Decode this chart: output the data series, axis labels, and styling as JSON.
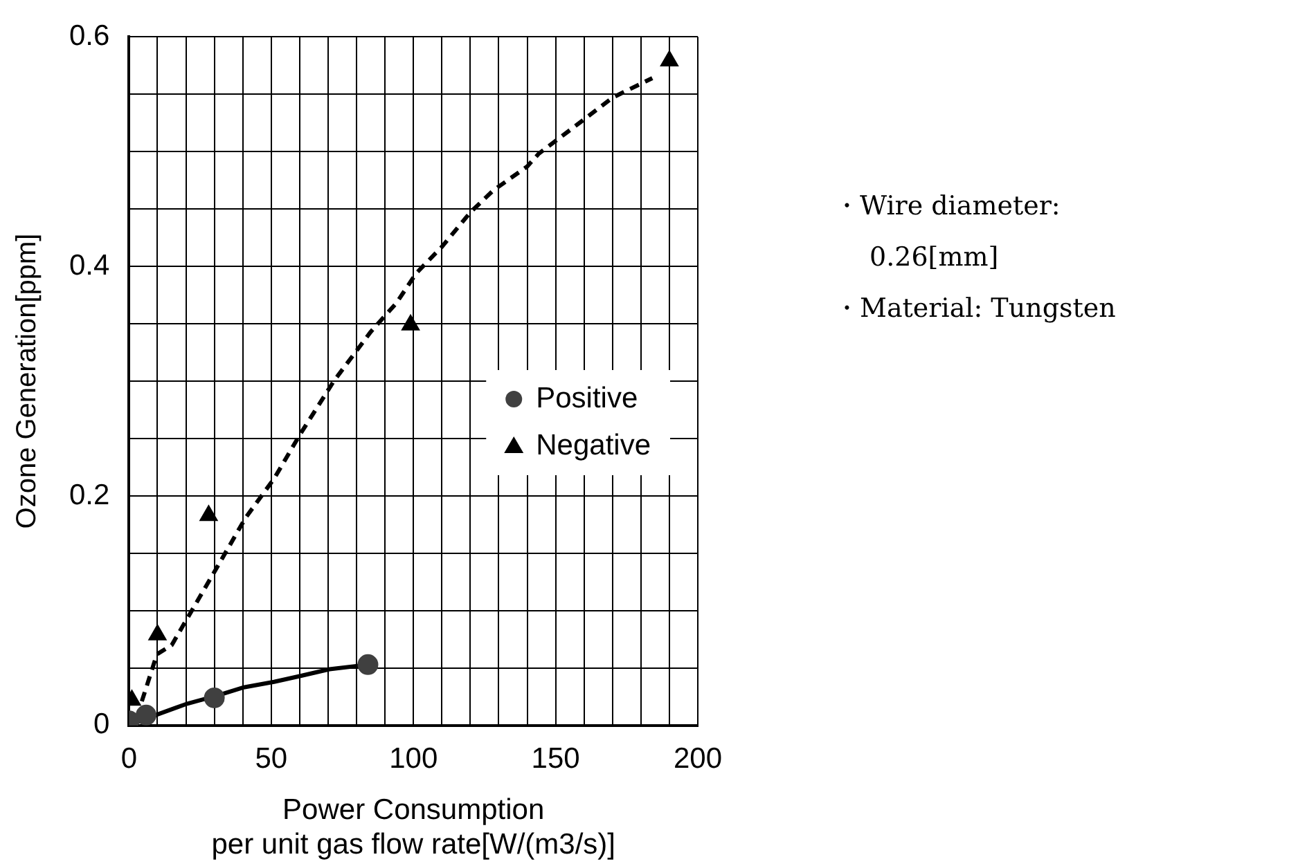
{
  "chart_data": {
    "type": "scatter",
    "xlabel": [
      "Power Consumption",
      "per unit gas flow rate[W/(m3/s)]"
    ],
    "ylabel": "Ozone Generation[ppm]",
    "series": [
      {
        "name": "Positive",
        "type": "scatter",
        "marker": "circle",
        "color": "#404040",
        "x": [
          0,
          6,
          30,
          84
        ],
        "values": [
          0.004,
          0.009,
          0.024,
          0.053
        ]
      },
      {
        "name": "Negative",
        "type": "scatter",
        "marker": "triangle",
        "color": "#000000",
        "x": [
          1,
          10,
          28,
          99,
          190
        ],
        "values": [
          0.022,
          0.079,
          0.183,
          0.349,
          0.579
        ]
      },
      {
        "type": "line",
        "color": "#000000",
        "line_style": "solid",
        "x": [
          0,
          6,
          20.5,
          31,
          40,
          51,
          60,
          70.5,
          84
        ],
        "values": [
          0,
          0.006,
          0.019,
          0.026,
          0.033,
          0.038,
          0.043,
          0.049,
          0.053
        ]
      },
      {
        "type": "line",
        "color": "#000000",
        "line_style": "dashed",
        "x": [
          4.5,
          9.8,
          15,
          31,
          41,
          51,
          60,
          72,
          85,
          94,
          101,
          110,
          120,
          128,
          140,
          144,
          160,
          170,
          184
        ],
        "values": [
          0.021,
          0.062,
          0.07,
          0.138,
          0.181,
          0.215,
          0.253,
          0.3,
          0.343,
          0.368,
          0.394,
          0.417,
          0.447,
          0.466,
          0.487,
          0.498,
          0.528,
          0.547,
          0.564
        ]
      }
    ],
    "xlim": [
      0,
      200
    ],
    "xticks": [
      0,
      {
        "value": 10,
        "label": null
      },
      {
        "value": 20,
        "label": null
      },
      {
        "value": 30,
        "label": null
      },
      {
        "value": 40,
        "label": null
      },
      50,
      {
        "value": 60,
        "label": null
      },
      {
        "value": 70,
        "label": null
      },
      {
        "value": 80,
        "label": null
      },
      {
        "value": 90,
        "label": null
      },
      100,
      {
        "value": 110,
        "label": null
      },
      {
        "value": 120,
        "label": null
      },
      {
        "value": 130,
        "label": null
      },
      {
        "value": 140,
        "label": null
      },
      150,
      {
        "value": 160,
        "label": null
      },
      {
        "value": 170,
        "label": null
      },
      {
        "value": 180,
        "label": null
      },
      {
        "value": 190,
        "label": null
      },
      200
    ],
    "ylim": [
      0,
      0.6
    ],
    "yticks": [
      0,
      {
        "value": 0.05,
        "label": null
      },
      {
        "value": 0.1,
        "label": null
      },
      {
        "value": 0.15,
        "label": null
      },
      0.2,
      {
        "value": 0.25,
        "label": null
      },
      {
        "value": 0.3,
        "label": null
      },
      {
        "value": 0.35,
        "label": null
      },
      0.4,
      {
        "value": 0.45,
        "label": null
      },
      {
        "value": 0.5,
        "label": null
      },
      {
        "value": 0.55,
        "label": null
      },
      0.6
    ],
    "grid": true,
    "legend": "right",
    "annotations": [
      "・Wire diameter:",
      "0.26[mm]",
      "・Material: Tungsten"
    ]
  }
}
